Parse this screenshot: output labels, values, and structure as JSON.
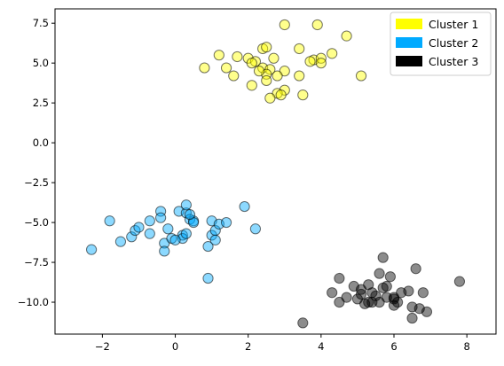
{
  "chart_data": {
    "type": "scatter",
    "title": "",
    "xlabel": "",
    "ylabel": "",
    "xlim": [
      -3.3,
      8.8
    ],
    "ylim": [
      -12.0,
      8.4
    ],
    "xticks": [
      -2,
      0,
      2,
      4,
      6,
      8
    ],
    "yticks": [
      -10.0,
      -7.5,
      -5.0,
      -2.5,
      0.0,
      2.5,
      5.0,
      7.5
    ],
    "xtick_labels": [
      "−2",
      "0",
      "2",
      "4",
      "6",
      "8"
    ],
    "ytick_labels": [
      "−10.0",
      "−7.5",
      "−5.0",
      "−2.5",
      "0.0",
      "2.5",
      "5.0",
      "7.5"
    ],
    "grid": false,
    "legend_position": "top-right",
    "series": [
      {
        "name": "Cluster 1",
        "color": "#ffff00",
        "points": [
          [
            3.0,
            7.4
          ],
          [
            3.9,
            7.4
          ],
          [
            4.7,
            6.7
          ],
          [
            1.2,
            5.5
          ],
          [
            1.7,
            5.4
          ],
          [
            2.4,
            5.9
          ],
          [
            2.5,
            6.0
          ],
          [
            3.4,
            5.9
          ],
          [
            4.3,
            5.6
          ],
          [
            2.0,
            5.3
          ],
          [
            2.2,
            5.1
          ],
          [
            2.7,
            5.3
          ],
          [
            3.8,
            5.2
          ],
          [
            4.0,
            5.3
          ],
          [
            3.7,
            5.1
          ],
          [
            4.0,
            5.0
          ],
          [
            0.8,
            4.7
          ],
          [
            1.4,
            4.7
          ],
          [
            2.1,
            5.0
          ],
          [
            2.4,
            4.7
          ],
          [
            2.6,
            4.6
          ],
          [
            3.0,
            4.5
          ],
          [
            1.6,
            4.2
          ],
          [
            2.5,
            4.3
          ],
          [
            3.4,
            4.2
          ],
          [
            2.8,
            4.2
          ],
          [
            5.1,
            4.2
          ],
          [
            2.5,
            3.9
          ],
          [
            2.1,
            3.6
          ],
          [
            3.0,
            3.3
          ],
          [
            2.8,
            3.1
          ],
          [
            2.9,
            3.0
          ],
          [
            3.5,
            3.0
          ],
          [
            2.6,
            2.8
          ],
          [
            2.3,
            4.5
          ]
        ]
      },
      {
        "name": "Cluster 2",
        "color": "#00aaff",
        "points": [
          [
            -2.3,
            -6.7
          ],
          [
            -1.8,
            -4.9
          ],
          [
            -1.5,
            -6.2
          ],
          [
            -1.2,
            -5.9
          ],
          [
            -1.1,
            -5.5
          ],
          [
            -1.0,
            -5.3
          ],
          [
            -0.7,
            -4.9
          ],
          [
            -0.7,
            -5.7
          ],
          [
            -0.4,
            -4.3
          ],
          [
            -0.4,
            -4.7
          ],
          [
            -0.3,
            -6.3
          ],
          [
            -0.3,
            -6.8
          ],
          [
            -0.2,
            -5.4
          ],
          [
            -0.1,
            -6.0
          ],
          [
            0.1,
            -4.3
          ],
          [
            0.2,
            -5.8
          ],
          [
            0.2,
            -6.0
          ],
          [
            0.3,
            -4.4
          ],
          [
            0.3,
            -3.9
          ],
          [
            0.3,
            -5.7
          ],
          [
            0.4,
            -4.8
          ],
          [
            0.5,
            -4.9
          ],
          [
            0.5,
            -5.0
          ],
          [
            0.9,
            -6.5
          ],
          [
            0.9,
            -8.5
          ],
          [
            1.0,
            -5.8
          ],
          [
            1.0,
            -4.9
          ],
          [
            1.1,
            -5.5
          ],
          [
            1.1,
            -6.1
          ],
          [
            1.2,
            -5.1
          ],
          [
            1.4,
            -5.0
          ],
          [
            1.9,
            -4.0
          ],
          [
            2.2,
            -5.4
          ],
          [
            0.0,
            -6.1
          ],
          [
            0.4,
            -4.5
          ]
        ]
      },
      {
        "name": "Cluster 3",
        "color": "#000000",
        "points": [
          [
            3.5,
            -11.3
          ],
          [
            4.3,
            -9.4
          ],
          [
            4.5,
            -10.0
          ],
          [
            4.5,
            -8.5
          ],
          [
            4.7,
            -9.7
          ],
          [
            4.9,
            -9.0
          ],
          [
            5.1,
            -9.5
          ],
          [
            5.1,
            -9.2
          ],
          [
            5.2,
            -10.1
          ],
          [
            5.3,
            -8.9
          ],
          [
            5.3,
            -10.0
          ],
          [
            5.4,
            -10.0
          ],
          [
            5.4,
            -9.4
          ],
          [
            5.5,
            -9.6
          ],
          [
            5.6,
            -8.2
          ],
          [
            5.6,
            -10.0
          ],
          [
            5.7,
            -9.1
          ],
          [
            5.7,
            -7.2
          ],
          [
            5.8,
            -9.7
          ],
          [
            5.8,
            -9.0
          ],
          [
            5.9,
            -8.4
          ],
          [
            6.0,
            -9.8
          ],
          [
            6.0,
            -10.2
          ],
          [
            6.1,
            -10.0
          ],
          [
            6.2,
            -9.4
          ],
          [
            6.4,
            -9.3
          ],
          [
            6.5,
            -11.0
          ],
          [
            6.5,
            -10.3
          ],
          [
            6.6,
            -7.9
          ],
          [
            6.7,
            -10.4
          ],
          [
            6.8,
            -9.4
          ],
          [
            6.9,
            -10.6
          ],
          [
            7.8,
            -8.7
          ],
          [
            5.0,
            -9.8
          ],
          [
            6.0,
            -9.7
          ]
        ]
      }
    ]
  }
}
